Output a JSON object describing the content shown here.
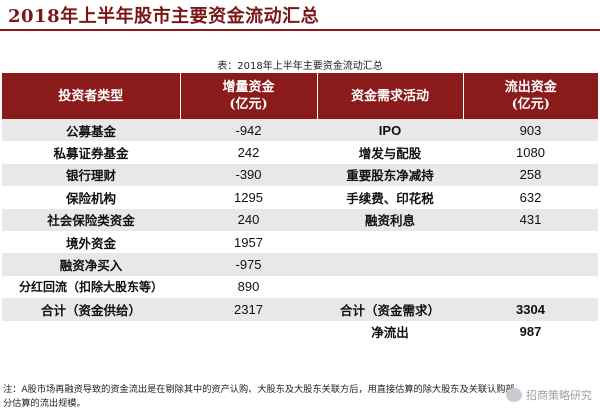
{
  "slide_title": "2018年上半年股市主要资金流动汇总",
  "caption": "表：2018年上半年主要资金流动汇总",
  "headers": [
    "投资者类型",
    "增量资金\n(亿元)",
    "资金需求活动",
    "流出资金\n(亿元)"
  ],
  "rows": [
    {
      "type": "公募基金",
      "inflow": "-942",
      "activity": "IPO",
      "outflow": "903"
    },
    {
      "type": "私募证券基金",
      "inflow": "242",
      "activity": "增发与配股",
      "outflow": "1080"
    },
    {
      "type": "银行理财",
      "inflow": "-390",
      "activity": "重要股东净减持",
      "outflow": "258"
    },
    {
      "type": "保险机构",
      "inflow": "1295",
      "activity": "手续费、印花税",
      "outflow": "632"
    },
    {
      "type": "社会保险类资金",
      "inflow": "240",
      "activity": "融资利息",
      "outflow": "431"
    },
    {
      "type": "境外资金",
      "inflow": "1957",
      "activity": "",
      "outflow": ""
    },
    {
      "type": "融资净买入",
      "inflow": "-975",
      "activity": "",
      "outflow": ""
    },
    {
      "type": "分红回流（扣除大股东等）",
      "inflow": "890",
      "activity": "",
      "outflow": ""
    },
    {
      "type": "合计（资金供给）",
      "inflow": "2317",
      "activity": "合计（资金需求）",
      "outflow": "3304"
    },
    {
      "type": "",
      "inflow": "",
      "activity": "净流出",
      "outflow": "987"
    }
  ],
  "footnote": "注：A股市场再融资导致的资金流出是在剔除其中的资产认购、大股东及大股东关联方后，用直接估算的除大股东及关联认购部分估算的流出规模。",
  "watermark": "招商策略研究"
}
